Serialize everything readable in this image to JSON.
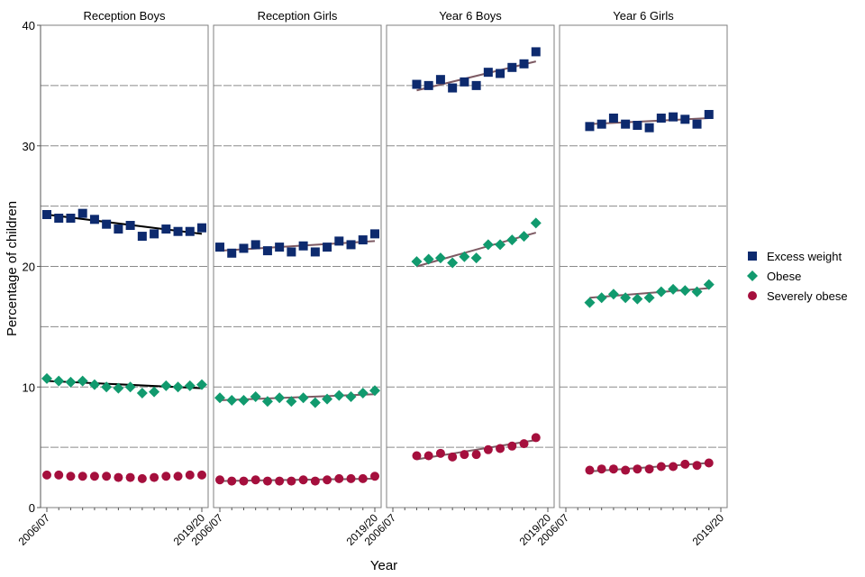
{
  "chart_data": {
    "type": "scatter",
    "ylabel": "Percentage of children",
    "xlabel": "Year",
    "ylim": [
      0,
      40
    ],
    "yticks": [
      0,
      10,
      20,
      30,
      40
    ],
    "gridlines": [
      5,
      10,
      15,
      20,
      25,
      30,
      35
    ],
    "x_tick_labels": [
      "2006/07",
      "2019/20"
    ],
    "legend": {
      "position": "right",
      "items": [
        {
          "label": "Excess weight",
          "color": "#0d2a6e",
          "shape": "square"
        },
        {
          "label": "Obese",
          "color": "#119a6e",
          "shape": "diamond"
        },
        {
          "label": "Severely obese",
          "color": "#a50f3d",
          "shape": "circle"
        }
      ]
    },
    "panels": [
      {
        "title": "Reception Boys",
        "start_index": 0,
        "trend_color": "#000000",
        "series": [
          {
            "name": "Excess weight",
            "values": [
              24.3,
              24.0,
              24.0,
              24.4,
              23.9,
              23.5,
              23.1,
              23.4,
              22.5,
              22.7,
              23.1,
              22.9,
              22.9,
              23.2
            ],
            "trend": [
              24.3,
              22.7
            ]
          },
          {
            "name": "Obese",
            "values": [
              10.7,
              10.5,
              10.4,
              10.5,
              10.2,
              10.0,
              9.9,
              10.0,
              9.5,
              9.6,
              10.1,
              10.0,
              10.1,
              10.2
            ],
            "trend": [
              10.5,
              9.9
            ]
          },
          {
            "name": "Severely obese",
            "values": [
              2.7,
              2.7,
              2.6,
              2.6,
              2.6,
              2.6,
              2.5,
              2.5,
              2.4,
              2.5,
              2.6,
              2.6,
              2.7,
              2.7
            ],
            "trend": null
          }
        ]
      },
      {
        "title": "Reception Girls",
        "start_index": 0,
        "trend_color": "#7d5a63",
        "series": [
          {
            "name": "Excess weight",
            "values": [
              21.6,
              21.1,
              21.5,
              21.8,
              21.3,
              21.6,
              21.2,
              21.7,
              21.2,
              21.6,
              22.1,
              21.8,
              22.2,
              22.7
            ],
            "trend": [
              21.3,
              22.1
            ]
          },
          {
            "name": "Obese",
            "values": [
              9.1,
              8.9,
              8.9,
              9.2,
              8.8,
              9.1,
              8.8,
              9.1,
              8.7,
              9.0,
              9.3,
              9.2,
              9.5,
              9.7
            ],
            "trend": [
              8.9,
              9.4
            ]
          },
          {
            "name": "Severely obese",
            "values": [
              2.3,
              2.2,
              2.2,
              2.3,
              2.2,
              2.2,
              2.2,
              2.3,
              2.2,
              2.3,
              2.4,
              2.4,
              2.4,
              2.6
            ],
            "trend": [
              2.2,
              2.4
            ]
          }
        ]
      },
      {
        "title": "Year 6 Boys",
        "start_index": 2,
        "trend_color": "#7d5a63",
        "series": [
          {
            "name": "Excess weight",
            "values": [
              35.1,
              35.0,
              35.5,
              34.8,
              35.3,
              35.0,
              36.1,
              36.0,
              36.5,
              36.8,
              37.8
            ],
            "trend": [
              34.6,
              37.0
            ]
          },
          {
            "name": "Obese",
            "values": [
              20.4,
              20.6,
              20.7,
              20.3,
              20.8,
              20.7,
              21.8,
              21.8,
              22.2,
              22.5,
              23.6
            ],
            "trend": [
              20.0,
              22.8
            ]
          },
          {
            "name": "Severely obese",
            "values": [
              4.3,
              4.3,
              4.5,
              4.2,
              4.4,
              4.4,
              4.8,
              4.9,
              5.1,
              5.3,
              5.8
            ],
            "trend": [
              4.0,
              5.6
            ]
          }
        ]
      },
      {
        "title": "Year 6 Girls",
        "start_index": 2,
        "trend_color": "#7d5a63",
        "series": [
          {
            "name": "Excess weight",
            "values": [
              31.6,
              31.8,
              32.3,
              31.8,
              31.7,
              31.5,
              32.3,
              32.4,
              32.2,
              31.8,
              32.6
            ],
            "trend": [
              31.8,
              32.3
            ]
          },
          {
            "name": "Obese",
            "values": [
              17.0,
              17.4,
              17.7,
              17.4,
              17.3,
              17.4,
              17.9,
              18.1,
              18.0,
              17.9,
              18.5
            ],
            "trend": [
              17.4,
              18.2
            ]
          },
          {
            "name": "Severely obese",
            "values": [
              3.1,
              3.2,
              3.2,
              3.1,
              3.2,
              3.2,
              3.4,
              3.4,
              3.6,
              3.5,
              3.7
            ],
            "trend": [
              3.0,
              3.7
            ]
          }
        ]
      }
    ]
  }
}
